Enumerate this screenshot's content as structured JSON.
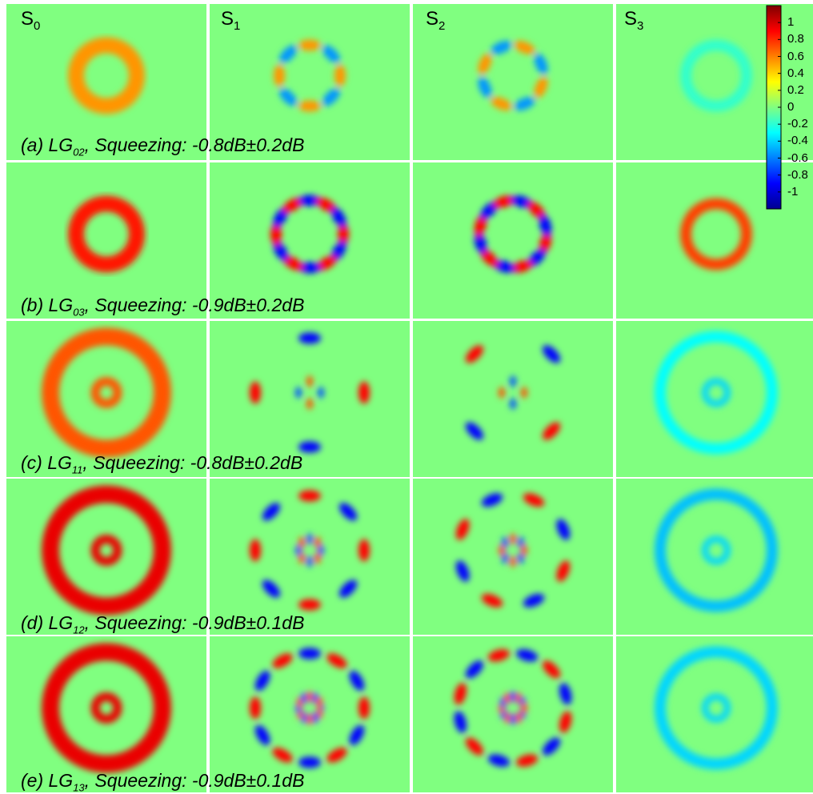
{
  "columns": [
    {
      "base": "S",
      "sub": "0"
    },
    {
      "base": "S",
      "sub": "1"
    },
    {
      "base": "S",
      "sub": "2"
    },
    {
      "base": "S",
      "sub": "3"
    }
  ],
  "rows": [
    {
      "tag": "(a) ",
      "mode": "LG",
      "mode_sub": "02",
      "rest": ", Squeezing: -0.8dB±0.2dB",
      "l": 2,
      "p": 0,
      "s0_amp": 0.55,
      "s3_sign": -1,
      "s3_amp": 0.18
    },
    {
      "tag": "(b) ",
      "mode": "LG",
      "mode_sub": "03",
      "rest": ", Squeezing: -0.9dB±0.2dB",
      "l": 3,
      "p": 0,
      "s0_amp": 0.85,
      "s3_sign": 1,
      "s3_amp": 0.75
    },
    {
      "tag": "(c) ",
      "mode": "LG",
      "mode_sub": "11",
      "rest": ", Squeezing: -0.8dB±0.2dB",
      "l": 1,
      "p": 1,
      "s0_amp": 0.7,
      "s3_sign": -1,
      "s3_amp": 0.3
    },
    {
      "tag": "(d) ",
      "mode": "LG",
      "mode_sub": "12",
      "rest": ", Squeezing: -0.9dB±0.1dB",
      "l": 2,
      "p": 1,
      "s0_amp": 0.95,
      "s3_sign": -1,
      "s3_amp": 0.45
    },
    {
      "tag": "(e) ",
      "mode": "LG",
      "mode_sub": "13",
      "rest": ", Squeezing: -0.9dB±0.1dB",
      "l": 3,
      "p": 1,
      "s0_amp": 0.95,
      "s3_sign": -1,
      "s3_amp": 0.4
    }
  ],
  "colorbar": {
    "min": -1.2,
    "max": 1.2,
    "tick_values": [
      1,
      0.8,
      0.6,
      0.4,
      0.2,
      0,
      -0.2,
      -0.4,
      -0.6,
      -0.8,
      -1
    ],
    "tick_labels": [
      "1",
      "0.8",
      "0.6",
      "0.4",
      "0.2",
      "0",
      "-0.2",
      "-0.4",
      "-0.6",
      "-0.8",
      "-1"
    ],
    "colors": [
      "#00008f",
      "#0000ff",
      "#0080ff",
      "#00ffff",
      "#80ff80",
      "#ffff00",
      "#ff8000",
      "#ff0000",
      "#800000"
    ]
  }
}
